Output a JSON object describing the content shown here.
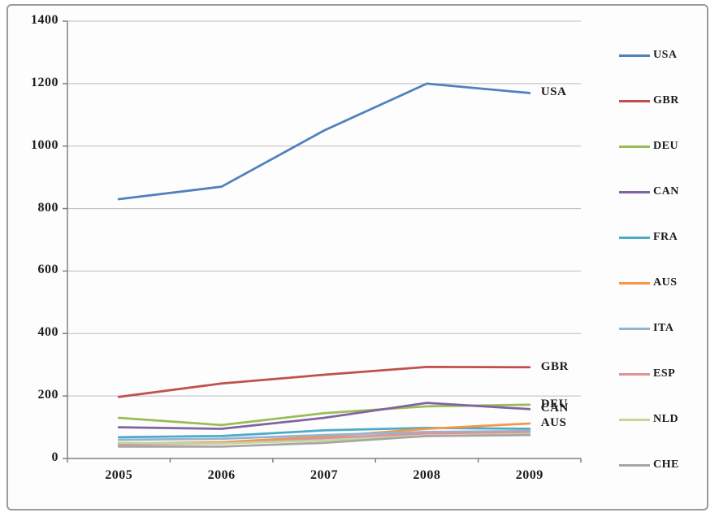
{
  "chart_data": {
    "type": "line",
    "title": "",
    "xlabel": "",
    "ylabel": "",
    "categories": [
      "2005",
      "2006",
      "2007",
      "2008",
      "2009"
    ],
    "yticks": [
      "0",
      "200",
      "400",
      "600",
      "800",
      "1000",
      "1200",
      "1400"
    ],
    "ylim": [
      0,
      1400
    ],
    "grid": true,
    "legend_position": "right",
    "axis_color": "#808080",
    "grid_color": "#bdbdbd",
    "series": [
      {
        "name": "USA",
        "color": "#4F81BD",
        "values": [
          830,
          870,
          1050,
          1200,
          1170
        ]
      },
      {
        "name": "GBR",
        "color": "#C0504D",
        "values": [
          197,
          240,
          268,
          293,
          292
        ]
      },
      {
        "name": "DEU",
        "color": "#9BBB59",
        "values": [
          130,
          107,
          145,
          167,
          172
        ]
      },
      {
        "name": "CAN",
        "color": "#8064A2",
        "values": [
          100,
          95,
          130,
          178,
          158
        ]
      },
      {
        "name": "FRA",
        "color": "#4BACC6",
        "values": [
          68,
          72,
          90,
          98,
          95
        ]
      },
      {
        "name": "AUS",
        "color": "#F79646",
        "values": [
          48,
          52,
          70,
          95,
          112
        ]
      },
      {
        "name": "ITA",
        "color": "#95B3D7",
        "values": [
          60,
          63,
          75,
          85,
          88
        ]
      },
      {
        "name": "ESP",
        "color": "#D99694",
        "values": [
          45,
          48,
          65,
          80,
          85
        ]
      },
      {
        "name": "NLD",
        "color": "#C3D69B",
        "values": [
          50,
          48,
          58,
          72,
          78
        ]
      },
      {
        "name": "CHE",
        "color": "#A6A6A6",
        "values": [
          38,
          38,
          50,
          72,
          75
        ]
      }
    ],
    "end_labels": [
      {
        "text": "USA",
        "series": "USA"
      },
      {
        "text": "GBR",
        "series": "GBR"
      },
      {
        "text": "DEU",
        "series": "DEU"
      },
      {
        "text": "CAN",
        "series": "CAN"
      },
      {
        "text": "AUS",
        "series": "AUS"
      }
    ],
    "legend_entries": [
      "USA",
      "GBR",
      "DEU",
      "CAN",
      "FRA",
      "AUS",
      "ITA",
      "ESP",
      "NLD",
      "CHE"
    ]
  }
}
